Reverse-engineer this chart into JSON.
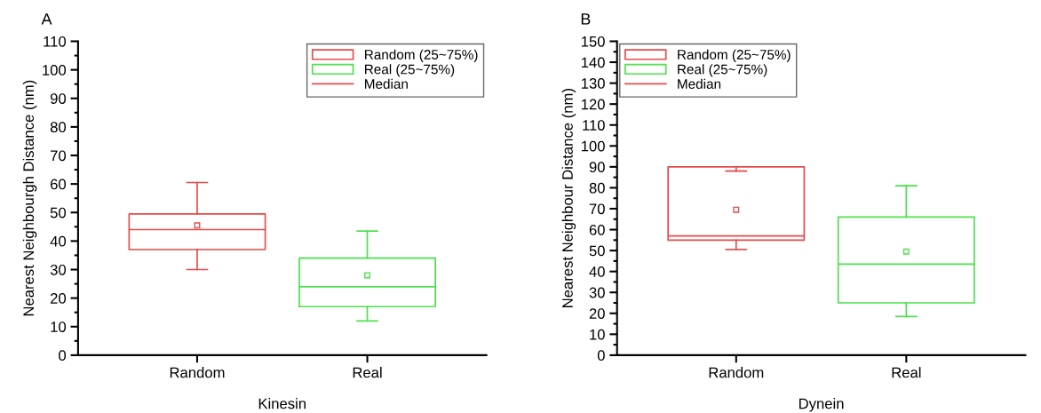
{
  "chart_data": [
    {
      "type": "box",
      "title": "A",
      "xlabel": "Kinesin",
      "ylabel": "Nearest Neighbourgh Distance (nm)",
      "categories": [
        "Random",
        "Real"
      ],
      "ylim": [
        0,
        110
      ],
      "yticks": [
        0,
        10,
        20,
        30,
        40,
        50,
        60,
        70,
        80,
        90,
        100,
        110
      ],
      "legend": "top right",
      "grid": false,
      "marker": "square",
      "series": [
        {
          "name": "Random (25~75%)",
          "color": "#e84a4a",
          "boxes": [
            {
              "low": 30,
              "q1": 37,
              "median": 44,
              "q3": 49.5,
              "high": 60.5,
              "mean": 45.5
            },
            null
          ]
        },
        {
          "name": "Real (25~75%)",
          "color": "#4ce04c",
          "boxes": [
            null,
            {
              "low": 12,
              "q1": 17,
              "median": 24,
              "q3": 34,
              "high": 43.5,
              "mean": 28
            }
          ]
        },
        {
          "name": "Median",
          "type": "line",
          "color": "#e84a4a",
          "values": [
            null,
            null
          ]
        }
      ]
    },
    {
      "type": "box",
      "title": "B",
      "xlabel": "Dynein",
      "ylabel": "Nearest Neighbour Distance (nm)",
      "categories": [
        "Random",
        "Real"
      ],
      "ylim": [
        0,
        150
      ],
      "yticks": [
        0,
        10,
        20,
        30,
        40,
        50,
        60,
        70,
        80,
        90,
        100,
        110,
        120,
        130,
        140,
        150
      ],
      "legend": "top left",
      "grid": false,
      "marker": "square",
      "series": [
        {
          "name": "Random (25~75%)",
          "color": "#e84a4a",
          "boxes": [
            {
              "low": 50.5,
              "q1": 55,
              "median": 57,
              "q3": 90,
              "high": 88,
              "mean": 69.5
            },
            null
          ]
        },
        {
          "name": "Real (25~75%)",
          "color": "#4ce04c",
          "boxes": [
            null,
            {
              "low": 18.5,
              "q1": 25,
              "median": 43.5,
              "q3": 66,
              "high": 81,
              "mean": 49.5
            }
          ]
        },
        {
          "name": "Median",
          "type": "line",
          "color": "#e84a4a",
          "values": [
            null,
            null
          ]
        }
      ]
    }
  ]
}
